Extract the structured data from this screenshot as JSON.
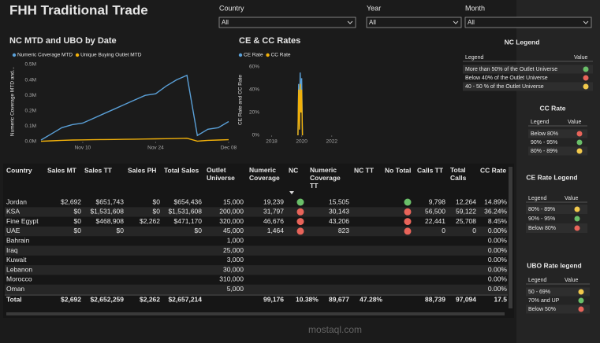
{
  "header": {
    "title": "FHH Traditional Trade"
  },
  "filters": [
    {
      "label": "Country",
      "value": "All"
    },
    {
      "label": "Year",
      "value": "All"
    },
    {
      "label": "Month",
      "value": "All"
    }
  ],
  "chart_data": [
    {
      "type": "line",
      "title": "NC MTD and UBO by Date",
      "y_label": "Numeric Coverage MTD and...",
      "x": [
        "Nov 02",
        "Nov 04",
        "Nov 06",
        "Nov 08",
        "Nov 10",
        "Nov 12",
        "Nov 14",
        "Nov 16",
        "Nov 18",
        "Nov 20",
        "Nov 22",
        "Nov 24",
        "Nov 26",
        "Nov 28",
        "Nov 30",
        "Dec 02",
        "Dec 04",
        "Dec 06",
        "Dec 08"
      ],
      "xticks": [
        "Nov 10",
        "Nov 24",
        "Dec 08"
      ],
      "series": [
        {
          "name": "Numeric Coverage MTD",
          "color": "#5aa0d8",
          "values": [
            10000,
            50000,
            90000,
            110000,
            120000,
            150000,
            180000,
            210000,
            240000,
            270000,
            300000,
            310000,
            360000,
            400000,
            430000,
            40000,
            80000,
            90000,
            130000
          ]
        },
        {
          "name": "Unique Buying Outlet MTD",
          "color": "#f2b10a",
          "values": [
            2000,
            5000,
            8000,
            10000,
            11000,
            12000,
            13000,
            14000,
            15000,
            16000,
            17000,
            18000,
            19000,
            20000,
            22000,
            3000,
            8000,
            10000,
            12000
          ]
        }
      ],
      "ylim": [
        0,
        520000
      ],
      "yticks": [
        {
          "value": 0,
          "label": "0.0M"
        },
        {
          "value": 100000,
          "label": "0.1M"
        },
        {
          "value": 200000,
          "label": "0.2M"
        },
        {
          "value": 300000,
          "label": "0.3M"
        },
        {
          "value": 400000,
          "label": "0.4M"
        },
        {
          "value": 500000,
          "label": "0.5M"
        }
      ],
      "grid": false
    },
    {
      "type": "line",
      "title": "CE & CC Rates",
      "y_label": "CE Rate and CC Rate",
      "x": [
        2019.75,
        2019.8,
        2019.85,
        2019.9,
        2019.95,
        2020.0,
        2020.05
      ],
      "xlim": [
        2017.5,
        2023.8
      ],
      "xticks": [
        2018,
        2020,
        2022
      ],
      "series": [
        {
          "name": "CE Rate",
          "color": "#5aa0d8",
          "values": [
            0,
            45,
            10,
            55,
            30,
            50,
            0
          ]
        },
        {
          "name": "CC Rate",
          "color": "#f2b10a",
          "values": [
            0,
            40,
            5,
            45,
            20,
            40,
            0
          ]
        }
      ],
      "ylim": [
        0,
        62
      ],
      "yticks": [
        {
          "value": 0,
          "label": "0%"
        },
        {
          "value": 20,
          "label": "20%"
        },
        {
          "value": 40,
          "label": "40%"
        },
        {
          "value": 60,
          "label": "60%"
        }
      ],
      "grid": false
    }
  ],
  "table": {
    "columns": [
      "Country",
      "Sales MT",
      "Sales TT",
      "Sales PH",
      "Total Sales",
      "Outlet Universe",
      "Numeric Coverage",
      "NC",
      "Numeric Coverage TT",
      "NC TT",
      "No Total",
      "Calls TT",
      "Total Calls",
      "CC Rate"
    ],
    "rows": [
      [
        "Jordan",
        "$2,692",
        "$651,743",
        "$0",
        "$654,436",
        "15,000",
        "19,239",
        {
          "icon": "#6abf69"
        },
        "15,505",
        null,
        {
          "icon": "#6abf69"
        },
        "9,798",
        "12,264",
        "14.89%"
      ],
      [
        "KSA",
        "$0",
        "$1,531,608",
        "$0",
        "$1,531,608",
        "200,000",
        "31,797",
        {
          "icon": "#e8645a"
        },
        "30,143",
        null,
        {
          "icon": "#e8645a"
        },
        "56,500",
        "59,122",
        "36.24%"
      ],
      [
        "Fine Egypt",
        "$0",
        "$468,908",
        "$2,262",
        "$471,170",
        "320,000",
        "46,676",
        {
          "icon": "#e8645a"
        },
        "43,206",
        null,
        {
          "icon": "#e8645a"
        },
        "22,441",
        "25,708",
        "8.45%"
      ],
      [
        "UAE",
        "$0",
        "$0",
        null,
        "$0",
        "45,000",
        "1,464",
        {
          "icon": "#e8645a"
        },
        "823",
        null,
        {
          "icon": "#e8645a"
        },
        "0",
        "0",
        "0.00%"
      ],
      [
        "Bahrain",
        null,
        null,
        null,
        null,
        "1,000",
        null,
        null,
        null,
        null,
        null,
        null,
        null,
        "0.00%"
      ],
      [
        "Iraq",
        null,
        null,
        null,
        null,
        "25,000",
        null,
        null,
        null,
        null,
        null,
        null,
        null,
        "0.00%"
      ],
      [
        "Kuwait",
        null,
        null,
        null,
        null,
        "3,000",
        null,
        null,
        null,
        null,
        null,
        null,
        null,
        "0.00%"
      ],
      [
        "Lebanon",
        null,
        null,
        null,
        null,
        "30,000",
        null,
        null,
        null,
        null,
        null,
        null,
        null,
        "0.00%"
      ],
      [
        "Morocco",
        null,
        null,
        null,
        null,
        "310,000",
        null,
        null,
        null,
        null,
        null,
        null,
        null,
        "0.00%"
      ],
      [
        "Oman",
        null,
        null,
        null,
        null,
        "5,000",
        null,
        null,
        null,
        null,
        null,
        null,
        null,
        "0.00%"
      ]
    ],
    "total": [
      "Total",
      "$2,692",
      "$2,652,259",
      "$2,262",
      "$2,657,214",
      null,
      "99,176",
      "10.38%",
      "89,677",
      "47.28%",
      null,
      "88,739",
      "97,094",
      "17.5"
    ]
  },
  "legends": [
    {
      "title": "NC Legend",
      "headers": [
        "Legend",
        "Value"
      ],
      "items": [
        {
          "label": "More than 50% of the Outlet Universe",
          "color": "#6abf69"
        },
        {
          "label": "Below 40% of the Outlet Universe",
          "color": "#e8645a"
        },
        {
          "label": "40 - 50 % of the Outlet Universe",
          "color": "#f2c94c"
        }
      ]
    },
    {
      "title": "CC Rate",
      "headers": [
        "Legend",
        "Value"
      ],
      "items": [
        {
          "label": "Below 80%",
          "color": "#e8645a"
        },
        {
          "label": "90% - 95%",
          "color": "#6abf69"
        },
        {
          "label": "80% - 89%",
          "color": "#f2c94c"
        }
      ]
    },
    {
      "title": "CE Rate Legend",
      "headers": [
        "Legend",
        "Value"
      ],
      "items": [
        {
          "label": "80% - 89%",
          "color": "#f2c94c"
        },
        {
          "label": "90% - 95%",
          "color": "#6abf69"
        },
        {
          "label": "Below 80%",
          "color": "#e8645a"
        }
      ]
    },
    {
      "title": "UBO Rate legend",
      "headers": [
        "Legend",
        "Value"
      ],
      "items": [
        {
          "label": "50 - 69%",
          "color": "#f2c94c"
        },
        {
          "label": "70% and UP",
          "color": "#6abf69"
        },
        {
          "label": "Below 50%",
          "color": "#e8645a"
        }
      ]
    }
  ],
  "watermark": "mostaql.com"
}
